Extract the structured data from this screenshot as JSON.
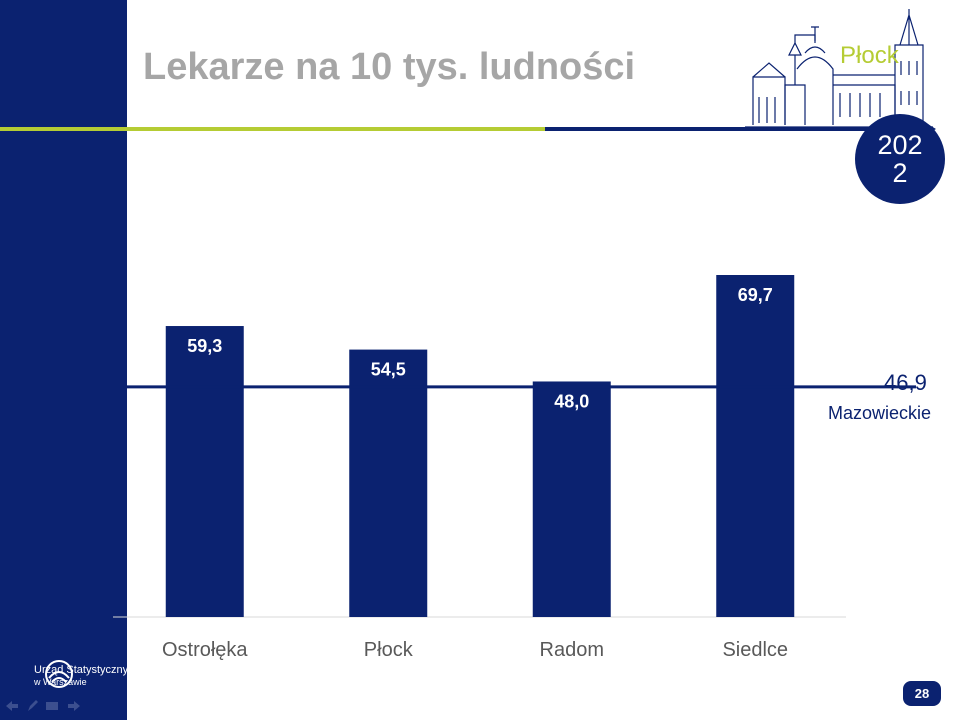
{
  "slide": {
    "title": "Lekarze na 10 tys. ludności",
    "city": "Płock",
    "year": "2022",
    "page_number": "28"
  },
  "logo": {
    "line1": "Urząd Statystyczny",
    "line2": "w Warszawie"
  },
  "reference": {
    "value_label": "46,9",
    "name": "Mazowieckie"
  },
  "colors": {
    "navy": "#0b2270",
    "green": "#b5cc34",
    "title_gray": "#a6a6a6"
  },
  "chart_data": {
    "type": "bar",
    "categories": [
      "Ostrołęka",
      "Płock",
      "Radom",
      "Siedlce"
    ],
    "values": [
      59.3,
      54.5,
      48.0,
      69.7
    ],
    "value_labels": [
      "59,3",
      "54,5",
      "48,0",
      "69,7"
    ],
    "reference_line": 46.9,
    "ylim": [
      0,
      72
    ],
    "title": "",
    "xlabel": "",
    "ylabel": "",
    "grid": false,
    "legend": "none"
  }
}
